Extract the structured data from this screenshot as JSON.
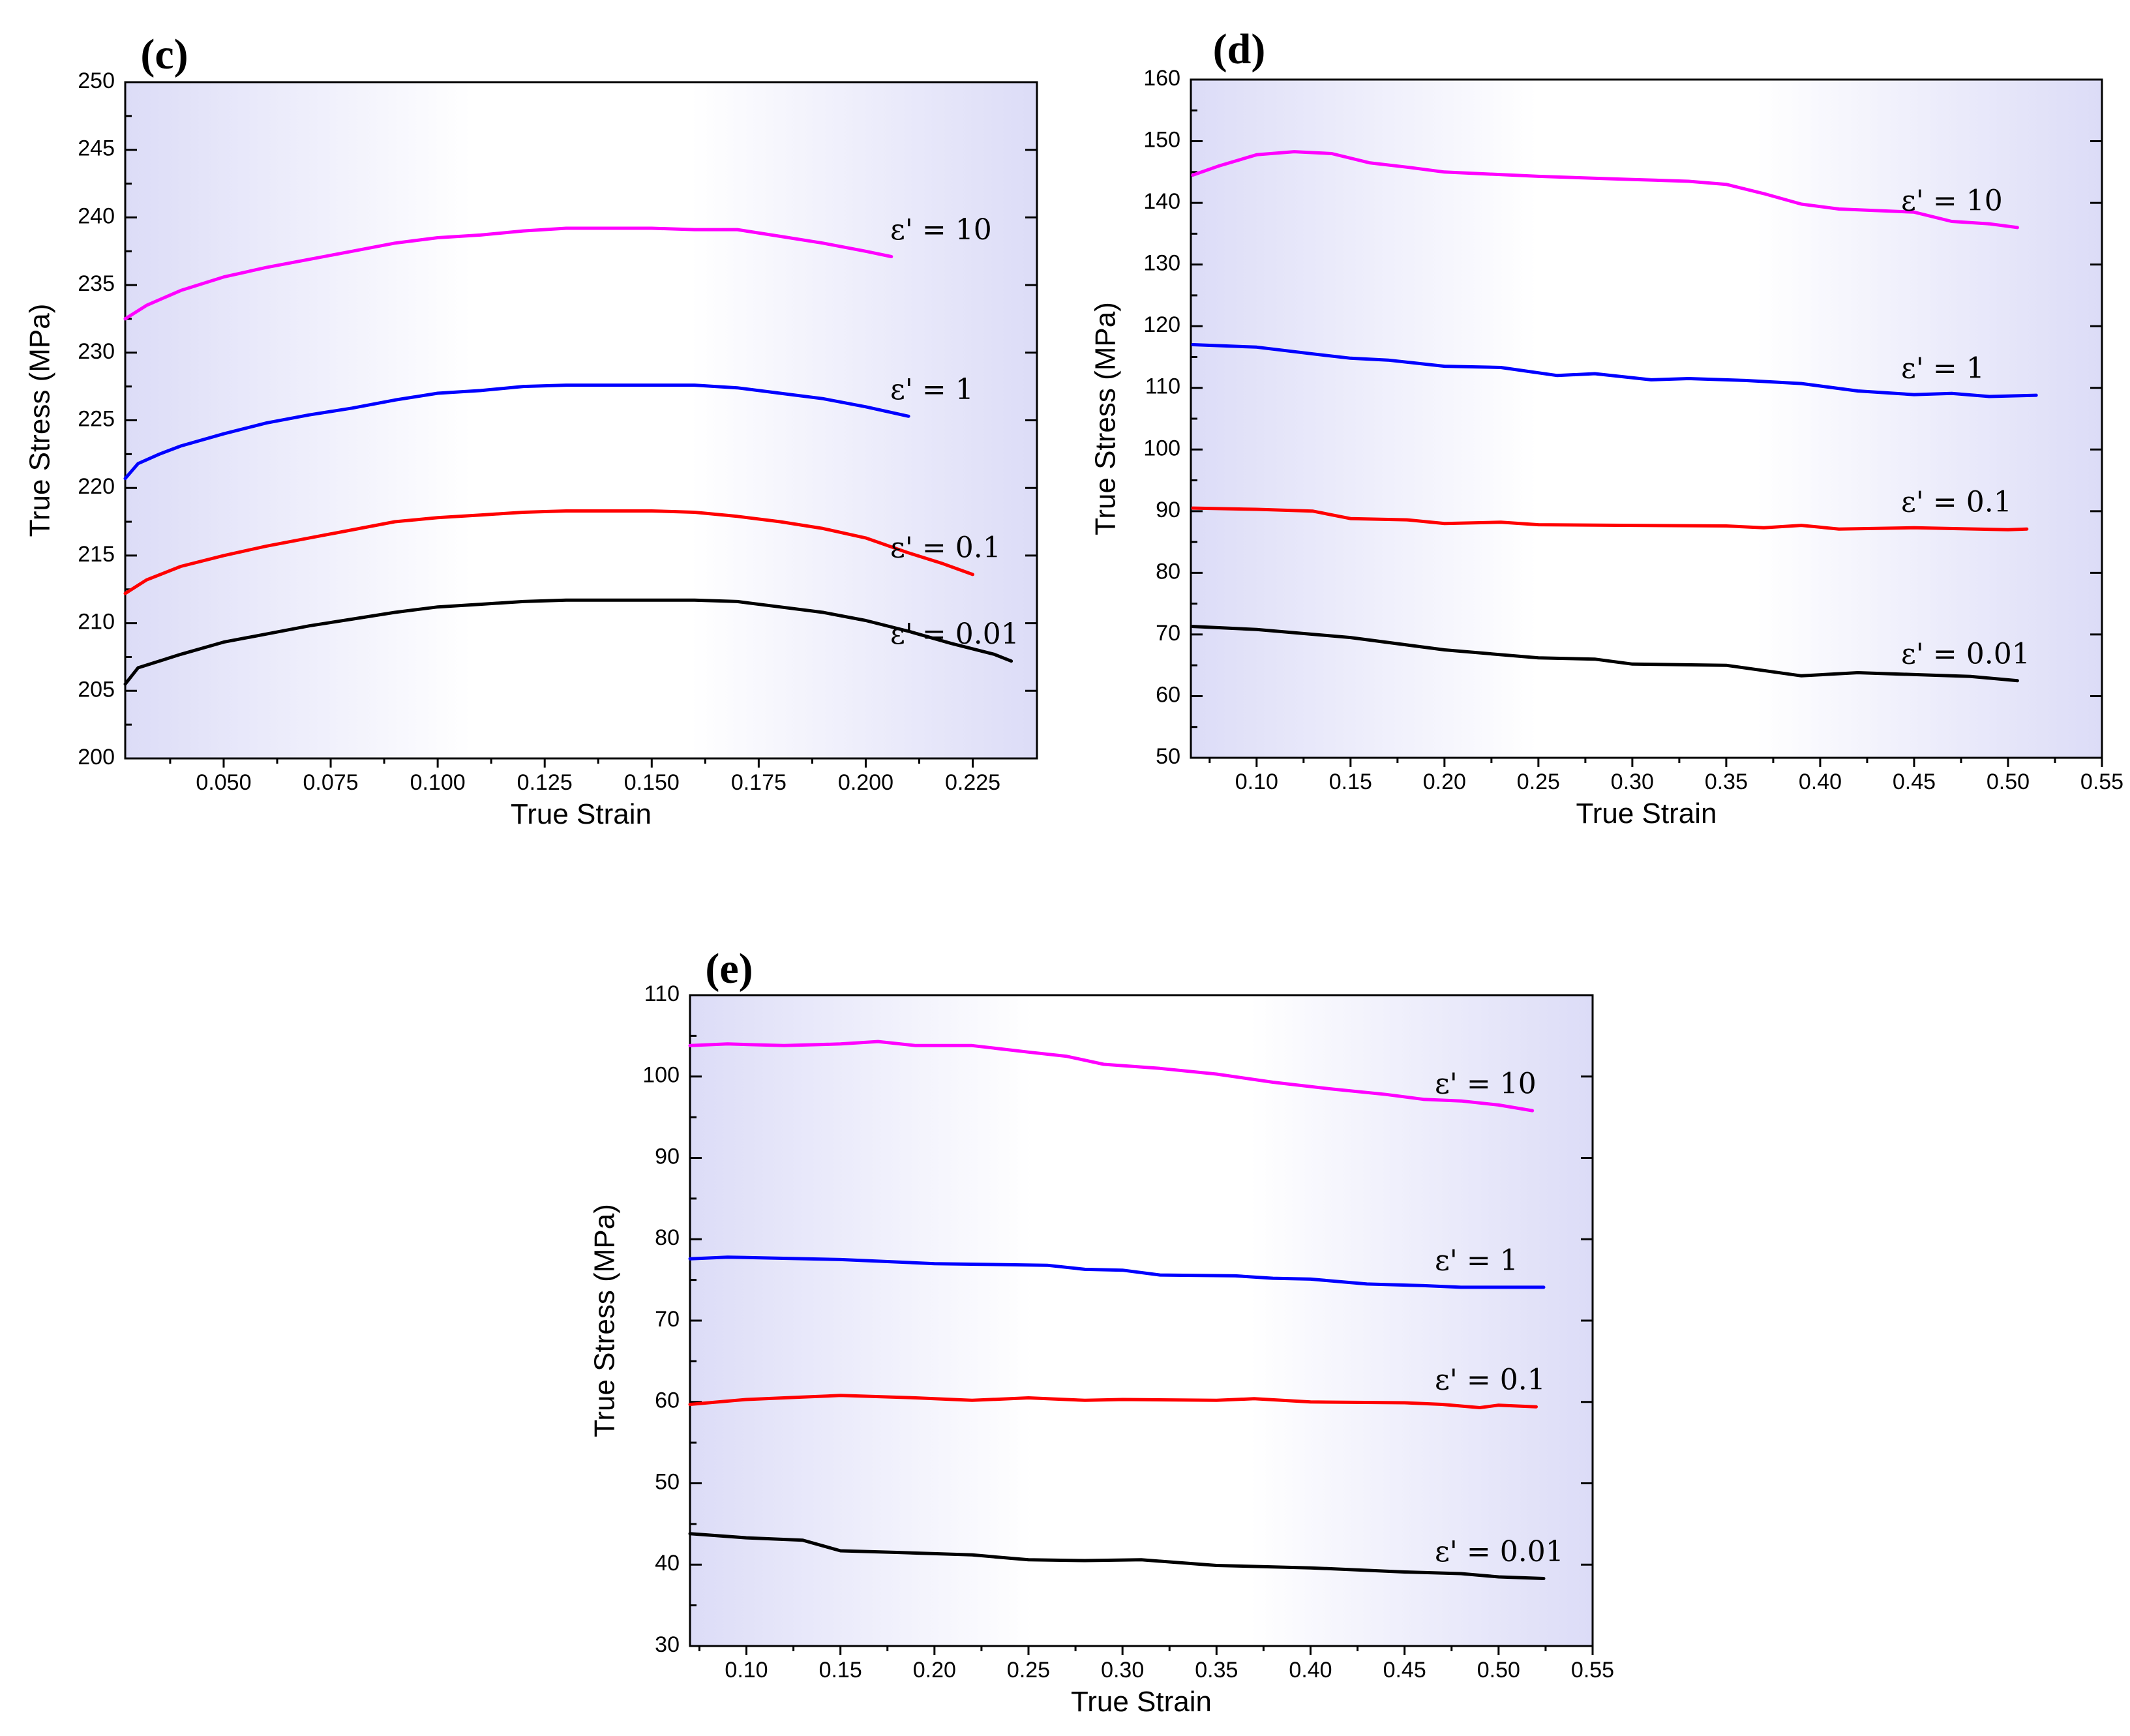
{
  "chart_data": [
    {
      "id": "c",
      "type": "line",
      "panel_label": "(c)",
      "xlabel": "True Strain",
      "ylabel": "True Stress (MPa)",
      "xlim": [
        0.027,
        0.24
      ],
      "ylim": [
        200,
        250
      ],
      "xticks": [
        0.05,
        0.075,
        0.1,
        0.125,
        0.15,
        0.175,
        0.2,
        0.225
      ],
      "xtick_labels": [
        "0.050",
        "0.075",
        "0.100",
        "0.125",
        "0.150",
        "0.175",
        "0.200",
        "0.225"
      ],
      "yticks": [
        200,
        205,
        210,
        215,
        220,
        225,
        230,
        235,
        240,
        245,
        250
      ],
      "ytick_labels": [
        "200",
        "205",
        "210",
        "215",
        "220",
        "225",
        "230",
        "235",
        "240",
        "245",
        "250"
      ],
      "series": [
        {
          "name": "ε' = 10",
          "color": "#ff00ff",
          "points": [
            [
              0.027,
              232.5
            ],
            [
              0.032,
              233.5
            ],
            [
              0.04,
              234.6
            ],
            [
              0.05,
              235.6
            ],
            [
              0.06,
              236.3
            ],
            [
              0.07,
              236.9
            ],
            [
              0.08,
              237.5
            ],
            [
              0.09,
              238.1
            ],
            [
              0.1,
              238.5
            ],
            [
              0.11,
              238.7
            ],
            [
              0.12,
              239.0
            ],
            [
              0.13,
              239.2
            ],
            [
              0.14,
              239.2
            ],
            [
              0.15,
              239.2
            ],
            [
              0.16,
              239.1
            ],
            [
              0.17,
              239.1
            ],
            [
              0.18,
              238.6
            ],
            [
              0.19,
              238.1
            ],
            [
              0.2,
              237.5
            ],
            [
              0.206,
              237.1
            ]
          ]
        },
        {
          "name": "ε' = 1",
          "color": "#0000ff",
          "points": [
            [
              0.027,
              220.7
            ],
            [
              0.03,
              221.8
            ],
            [
              0.035,
              222.5
            ],
            [
              0.04,
              223.1
            ],
            [
              0.05,
              224.0
            ],
            [
              0.06,
              224.8
            ],
            [
              0.07,
              225.4
            ],
            [
              0.08,
              225.9
            ],
            [
              0.09,
              226.5
            ],
            [
              0.1,
              227.0
            ],
            [
              0.11,
              227.2
            ],
            [
              0.12,
              227.5
            ],
            [
              0.13,
              227.6
            ],
            [
              0.14,
              227.6
            ],
            [
              0.15,
              227.6
            ],
            [
              0.16,
              227.6
            ],
            [
              0.17,
              227.4
            ],
            [
              0.18,
              227.0
            ],
            [
              0.19,
              226.6
            ],
            [
              0.2,
              226.0
            ],
            [
              0.21,
              225.3
            ]
          ]
        },
        {
          "name": "ε' = 0.1",
          "color": "#ff0000",
          "points": [
            [
              0.027,
              212.2
            ],
            [
              0.032,
              213.2
            ],
            [
              0.04,
              214.2
            ],
            [
              0.05,
              215.0
            ],
            [
              0.06,
              215.7
            ],
            [
              0.07,
              216.3
            ],
            [
              0.08,
              216.9
            ],
            [
              0.09,
              217.5
            ],
            [
              0.1,
              217.8
            ],
            [
              0.11,
              218.0
            ],
            [
              0.12,
              218.2
            ],
            [
              0.13,
              218.3
            ],
            [
              0.14,
              218.3
            ],
            [
              0.15,
              218.3
            ],
            [
              0.16,
              218.2
            ],
            [
              0.17,
              217.9
            ],
            [
              0.18,
              217.5
            ],
            [
              0.19,
              217.0
            ],
            [
              0.2,
              216.3
            ],
            [
              0.21,
              215.2
            ],
            [
              0.218,
              214.4
            ],
            [
              0.225,
              213.6
            ]
          ]
        },
        {
          "name": "ε' = 0.01",
          "color": "#000000",
          "points": [
            [
              0.027,
              205.5
            ],
            [
              0.03,
              206.7
            ],
            [
              0.04,
              207.7
            ],
            [
              0.05,
              208.6
            ],
            [
              0.06,
              209.2
            ],
            [
              0.07,
              209.8
            ],
            [
              0.08,
              210.3
            ],
            [
              0.09,
              210.8
            ],
            [
              0.1,
              211.2
            ],
            [
              0.11,
              211.4
            ],
            [
              0.12,
              211.6
            ],
            [
              0.13,
              211.7
            ],
            [
              0.14,
              211.7
            ],
            [
              0.15,
              211.7
            ],
            [
              0.16,
              211.7
            ],
            [
              0.17,
              211.6
            ],
            [
              0.18,
              211.2
            ],
            [
              0.19,
              210.8
            ],
            [
              0.2,
              210.2
            ],
            [
              0.21,
              209.4
            ],
            [
              0.22,
              208.5
            ],
            [
              0.23,
              207.7
            ],
            [
              0.234,
              207.2
            ]
          ]
        }
      ]
    },
    {
      "id": "d",
      "type": "line",
      "panel_label": "(d)",
      "xlabel": "True Strain",
      "ylabel": "True Stress (MPa)",
      "xlim": [
        0.065,
        0.55
      ],
      "ylim": [
        50,
        160
      ],
      "xticks": [
        0.1,
        0.15,
        0.2,
        0.25,
        0.3,
        0.35,
        0.4,
        0.45,
        0.5,
        0.55
      ],
      "xtick_labels": [
        "0.10",
        "0.15",
        "0.20",
        "0.25",
        "0.30",
        "0.35",
        "0.40",
        "0.45",
        "0.50",
        "0.55"
      ],
      "yticks": [
        50,
        60,
        70,
        80,
        90,
        100,
        110,
        120,
        130,
        140,
        150,
        160
      ],
      "ytick_labels": [
        "50",
        "60",
        "70",
        "80",
        "90",
        "100",
        "110",
        "120",
        "130",
        "140",
        "150",
        "160"
      ],
      "series": [
        {
          "name": "ε' = 10",
          "color": "#ff00ff",
          "points": [
            [
              0.066,
              144.5
            ],
            [
              0.08,
              146.0
            ],
            [
              0.1,
              147.8
            ],
            [
              0.12,
              148.3
            ],
            [
              0.14,
              148.0
            ],
            [
              0.16,
              146.5
            ],
            [
              0.18,
              145.8
            ],
            [
              0.2,
              145.0
            ],
            [
              0.25,
              144.3
            ],
            [
              0.3,
              143.8
            ],
            [
              0.33,
              143.5
            ],
            [
              0.35,
              143.0
            ],
            [
              0.37,
              141.5
            ],
            [
              0.39,
              139.8
            ],
            [
              0.41,
              139.0
            ],
            [
              0.45,
              138.5
            ],
            [
              0.47,
              137.0
            ],
            [
              0.49,
              136.6
            ],
            [
              0.505,
              136.0
            ]
          ]
        },
        {
          "name": "ε' = 1",
          "color": "#0000ff",
          "points": [
            [
              0.066,
              117.0
            ],
            [
              0.1,
              116.6
            ],
            [
              0.13,
              115.5
            ],
            [
              0.15,
              114.8
            ],
            [
              0.17,
              114.5
            ],
            [
              0.2,
              113.5
            ],
            [
              0.23,
              113.3
            ],
            [
              0.26,
              112.0
            ],
            [
              0.28,
              112.3
            ],
            [
              0.31,
              111.3
            ],
            [
              0.33,
              111.5
            ],
            [
              0.36,
              111.2
            ],
            [
              0.39,
              110.7
            ],
            [
              0.42,
              109.5
            ],
            [
              0.45,
              108.9
            ],
            [
              0.47,
              109.1
            ],
            [
              0.49,
              108.6
            ],
            [
              0.515,
              108.8
            ]
          ]
        },
        {
          "name": "ε' = 0.1",
          "color": "#ff0000",
          "points": [
            [
              0.066,
              90.5
            ],
            [
              0.1,
              90.3
            ],
            [
              0.13,
              90.0
            ],
            [
              0.15,
              88.8
            ],
            [
              0.18,
              88.6
            ],
            [
              0.2,
              88.0
            ],
            [
              0.23,
              88.2
            ],
            [
              0.25,
              87.8
            ],
            [
              0.3,
              87.7
            ],
            [
              0.35,
              87.6
            ],
            [
              0.37,
              87.3
            ],
            [
              0.39,
              87.7
            ],
            [
              0.41,
              87.1
            ],
            [
              0.45,
              87.3
            ],
            [
              0.5,
              87.0
            ],
            [
              0.51,
              87.1
            ]
          ]
        },
        {
          "name": "ε' = 0.01",
          "color": "#000000",
          "points": [
            [
              0.066,
              71.3
            ],
            [
              0.1,
              70.8
            ],
            [
              0.15,
              69.5
            ],
            [
              0.2,
              67.5
            ],
            [
              0.25,
              66.2
            ],
            [
              0.28,
              66.0
            ],
            [
              0.3,
              65.2
            ],
            [
              0.35,
              65.0
            ],
            [
              0.39,
              63.3
            ],
            [
              0.42,
              63.8
            ],
            [
              0.45,
              63.5
            ],
            [
              0.48,
              63.2
            ],
            [
              0.505,
              62.5
            ]
          ]
        }
      ]
    },
    {
      "id": "e",
      "type": "line",
      "panel_label": "(e)",
      "xlabel": "True Strain",
      "ylabel": "True Stress (MPa)",
      "xlim": [
        0.07,
        0.55
      ],
      "ylim": [
        30,
        110
      ],
      "xticks": [
        0.1,
        0.15,
        0.2,
        0.25,
        0.3,
        0.35,
        0.4,
        0.45,
        0.5,
        0.55
      ],
      "xtick_labels": [
        "0.10",
        "0.15",
        "0.20",
        "0.25",
        "0.30",
        "0.35",
        "0.40",
        "0.45",
        "0.50",
        "0.55"
      ],
      "yticks": [
        30,
        40,
        50,
        60,
        70,
        80,
        90,
        100,
        110
      ],
      "ytick_labels": [
        "30",
        "40",
        "50",
        "60",
        "70",
        "80",
        "90",
        "100",
        "110"
      ],
      "series": [
        {
          "name": "ε' = 10",
          "color": "#ff00ff",
          "points": [
            [
              0.07,
              103.8
            ],
            [
              0.09,
              104.0
            ],
            [
              0.12,
              103.8
            ],
            [
              0.15,
              104.0
            ],
            [
              0.17,
              104.3
            ],
            [
              0.19,
              103.8
            ],
            [
              0.22,
              103.8
            ],
            [
              0.25,
              103.0
            ],
            [
              0.27,
              102.5
            ],
            [
              0.29,
              101.5
            ],
            [
              0.32,
              101.0
            ],
            [
              0.35,
              100.3
            ],
            [
              0.38,
              99.3
            ],
            [
              0.41,
              98.5
            ],
            [
              0.44,
              97.8
            ],
            [
              0.46,
              97.2
            ],
            [
              0.48,
              97.0
            ],
            [
              0.5,
              96.5
            ],
            [
              0.518,
              95.8
            ]
          ]
        },
        {
          "name": "ε' = 1",
          "color": "#0000ff",
          "points": [
            [
              0.07,
              77.6
            ],
            [
              0.09,
              77.8
            ],
            [
              0.15,
              77.5
            ],
            [
              0.2,
              77.0
            ],
            [
              0.26,
              76.8
            ],
            [
              0.28,
              76.3
            ],
            [
              0.3,
              76.2
            ],
            [
              0.32,
              75.6
            ],
            [
              0.36,
              75.5
            ],
            [
              0.38,
              75.2
            ],
            [
              0.4,
              75.1
            ],
            [
              0.43,
              74.5
            ],
            [
              0.46,
              74.3
            ],
            [
              0.48,
              74.1
            ],
            [
              0.524,
              74.1
            ]
          ]
        },
        {
          "name": "ε' = 0.1",
          "color": "#ff0000",
          "points": [
            [
              0.07,
              59.7
            ],
            [
              0.1,
              60.3
            ],
            [
              0.13,
              60.6
            ],
            [
              0.15,
              60.8
            ],
            [
              0.19,
              60.5
            ],
            [
              0.22,
              60.2
            ],
            [
              0.25,
              60.5
            ],
            [
              0.28,
              60.2
            ],
            [
              0.3,
              60.3
            ],
            [
              0.35,
              60.2
            ],
            [
              0.37,
              60.4
            ],
            [
              0.4,
              60.0
            ],
            [
              0.45,
              59.9
            ],
            [
              0.47,
              59.7
            ],
            [
              0.49,
              59.3
            ],
            [
              0.5,
              59.6
            ],
            [
              0.52,
              59.4
            ]
          ]
        },
        {
          "name": "ε' = 0.01",
          "color": "#000000",
          "points": [
            [
              0.07,
              43.8
            ],
            [
              0.1,
              43.3
            ],
            [
              0.13,
              43.0
            ],
            [
              0.15,
              41.7
            ],
            [
              0.18,
              41.5
            ],
            [
              0.22,
              41.2
            ],
            [
              0.25,
              40.6
            ],
            [
              0.28,
              40.5
            ],
            [
              0.31,
              40.6
            ],
            [
              0.35,
              39.9
            ],
            [
              0.4,
              39.6
            ],
            [
              0.45,
              39.1
            ],
            [
              0.48,
              38.9
            ],
            [
              0.5,
              38.5
            ],
            [
              0.524,
              38.3
            ]
          ]
        }
      ]
    }
  ]
}
